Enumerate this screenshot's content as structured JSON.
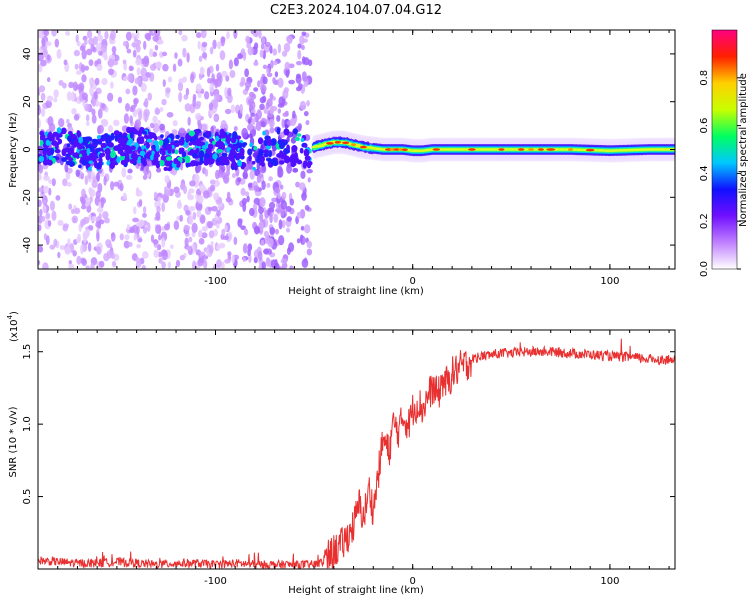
{
  "figure": {
    "title": "C2E3.2024.104.07.04.G12"
  },
  "colorbar": {
    "label": "Normalized spectral amplitude",
    "ticks": [
      "0.0",
      "0.2",
      "0.4",
      "0.6",
      "0.8"
    ],
    "range": [
      0,
      1
    ],
    "colors": [
      "#ffffff",
      "#c080ff",
      "#7010ff",
      "#1010ff",
      "#00c8ff",
      "#00ff60",
      "#c8ff00",
      "#ffd000",
      "#ff2000",
      "#ff0080"
    ]
  },
  "chart_data": [
    {
      "type": "heatmap",
      "title": "",
      "xlabel": "Height of straight line (km)",
      "ylabel": "Frequency (Hz)",
      "xlim": [
        -190,
        133
      ],
      "ylim": [
        -50,
        50
      ],
      "xticks": [
        "-100",
        "0",
        "100"
      ],
      "yticks": [
        "-40",
        "-20",
        "0",
        "20",
        "40"
      ],
      "grid": false,
      "noise_region_x": [
        -190,
        -52
      ],
      "signal_line": {
        "x": [
          -50,
          -45,
          -40,
          -35,
          -30,
          -25,
          -20,
          -15,
          -10,
          -5,
          0,
          5,
          10,
          20,
          40,
          60,
          80,
          100,
          120,
          133
        ],
        "y": [
          1,
          2,
          3,
          3,
          2,
          1,
          0.5,
          0,
          0,
          0,
          -0.5,
          -0.5,
          0,
          0,
          0,
          0,
          0,
          -0.5,
          0,
          0
        ]
      }
    },
    {
      "type": "line",
      "title": "",
      "xlabel": "Height of straight line (km)",
      "ylabel": "SNR (10 * v/v)",
      "scale_label": "(x10",
      "scale_exponent": "4",
      "scale_close": ")",
      "xlim": [
        -190,
        133
      ],
      "ylim": [
        0,
        1.65
      ],
      "xticks": [
        "-100",
        "0",
        "100"
      ],
      "yticks": [
        "0.5",
        "1.0",
        "1.5"
      ],
      "line_color": "#e83030",
      "series": [
        {
          "x": [
            -190,
            -180,
            -170,
            -160,
            -150,
            -140,
            -130,
            -120,
            -110,
            -100,
            -90,
            -80,
            -70,
            -60,
            -50,
            -45,
            -40,
            -35,
            -30,
            -27,
            -25,
            -22,
            -20,
            -17,
            -15,
            -12,
            -10,
            -7,
            -5,
            -2,
            0,
            3,
            5,
            8,
            10,
            13,
            15,
            18,
            20,
            23,
            25,
            28,
            30,
            35,
            40,
            45,
            50,
            60,
            70,
            80,
            90,
            100,
            110,
            120,
            133
          ],
          "y": [
            0.06,
            0.05,
            0.04,
            0.04,
            0.05,
            0.04,
            0.03,
            0.04,
            0.04,
            0.03,
            0.04,
            0.03,
            0.03,
            0.03,
            0.03,
            0.05,
            0.12,
            0.18,
            0.3,
            0.45,
            0.35,
            0.55,
            0.4,
            0.7,
            0.9,
            0.8,
            1.0,
            0.95,
            1.05,
            1.0,
            1.1,
            1.15,
            1.1,
            1.2,
            1.25,
            1.2,
            1.3,
            1.28,
            1.35,
            1.38,
            1.4,
            1.42,
            1.45,
            1.47,
            1.48,
            1.49,
            1.49,
            1.5,
            1.5,
            1.49,
            1.48,
            1.47,
            1.46,
            1.45,
            1.44
          ]
        }
      ]
    }
  ]
}
